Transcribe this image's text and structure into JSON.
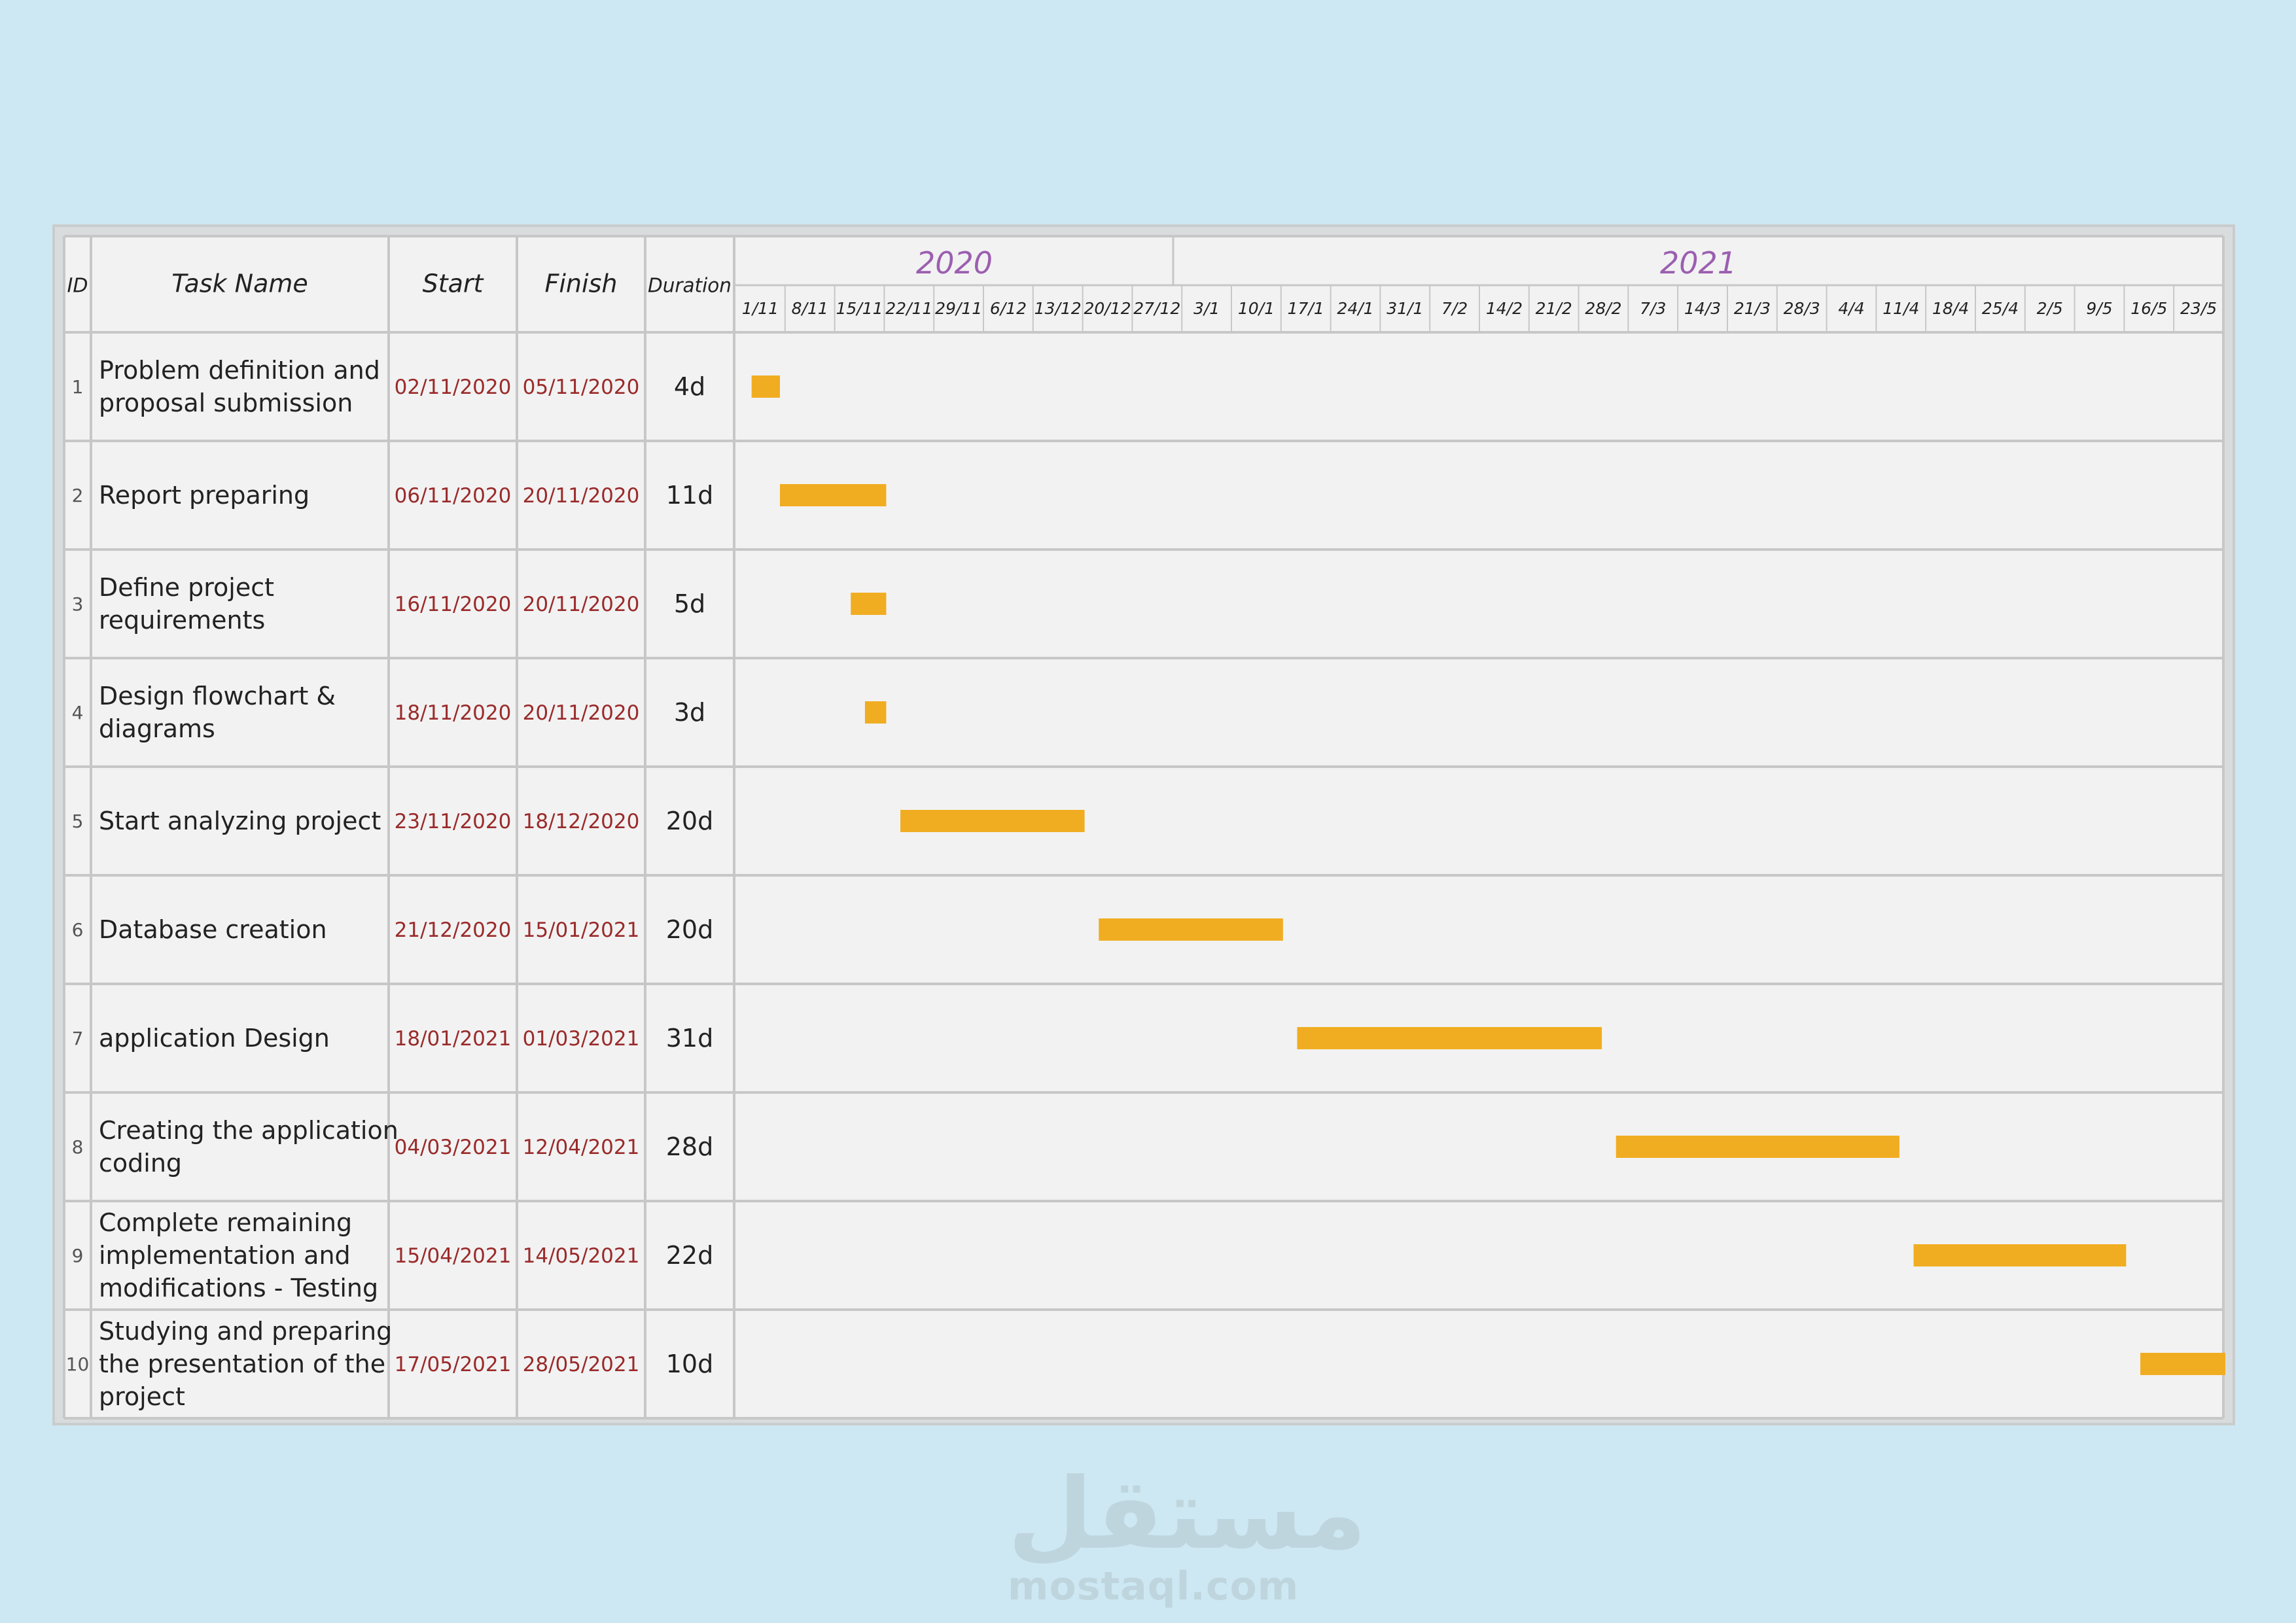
{
  "watermark": {
    "arabic": "مستقل",
    "latin": "mostaql.com"
  },
  "colors": {
    "bar": "#f1ad21",
    "cell": "#f2f2f2",
    "grid": "#c7c7c7",
    "year": "#9b5fb0",
    "date": "#9a2a2a",
    "text": "#222222"
  },
  "chart_data": {
    "type": "gantt",
    "headers": {
      "id": "ID",
      "task": "Task Name",
      "start": "Start",
      "finish": "Finish",
      "duration": "Duration"
    },
    "years": [
      {
        "label": "2020",
        "from": "2020-11-01",
        "to": "2020-12-31"
      },
      {
        "label": "2021",
        "from": "2021-01-01",
        "to": "2021-05-30"
      }
    ],
    "weeks": [
      "1/11",
      "8/11",
      "15/11",
      "22/11",
      "29/11",
      "6/12",
      "13/12",
      "20/12",
      "27/12",
      "3/1",
      "10/1",
      "17/1",
      "24/1",
      "31/1",
      "7/2",
      "14/2",
      "21/2",
      "28/2",
      "7/3",
      "14/3",
      "21/3",
      "28/3",
      "4/4",
      "11/4",
      "18/4",
      "25/4",
      "2/5",
      "9/5",
      "16/5",
      "23/5"
    ],
    "week_dates": [
      "2020-11-01",
      "2020-11-08",
      "2020-11-15",
      "2020-11-22",
      "2020-11-29",
      "2020-12-06",
      "2020-12-13",
      "2020-12-20",
      "2020-12-27",
      "2021-01-03",
      "2021-01-10",
      "2021-01-17",
      "2021-01-24",
      "2021-01-31",
      "2021-02-07",
      "2021-02-14",
      "2021-02-21",
      "2021-02-28",
      "2021-03-07",
      "2021-03-14",
      "2021-03-21",
      "2021-03-28",
      "2021-04-04",
      "2021-04-11",
      "2021-04-18",
      "2021-04-25",
      "2021-05-02",
      "2021-05-09",
      "2021-05-16",
      "2021-05-23"
    ],
    "tasks": [
      {
        "id": "1",
        "name": "Problem definition and\nproposal submission",
        "start": "02/11/2020",
        "finish": "05/11/2020",
        "duration": "4d"
      },
      {
        "id": "2",
        "name": "Report preparing",
        "start": "06/11/2020",
        "finish": "20/11/2020",
        "duration": "11d"
      },
      {
        "id": "3",
        "name": "Define project\nrequirements",
        "start": "16/11/2020",
        "finish": "20/11/2020",
        "duration": "5d"
      },
      {
        "id": "4",
        "name": "Design flowchart &\ndiagrams",
        "start": "18/11/2020",
        "finish": "20/11/2020",
        "duration": "3d"
      },
      {
        "id": "5",
        "name": "Start analyzing project",
        "start": "23/11/2020",
        "finish": "18/12/2020",
        "duration": "20d"
      },
      {
        "id": "6",
        "name": "Database creation",
        "start": "21/12/2020",
        "finish": "15/01/2021",
        "duration": "20d"
      },
      {
        "id": "7",
        "name": "application Design",
        "start": "18/01/2021",
        "finish": "01/03/2021",
        "duration": "31d"
      },
      {
        "id": "8",
        "name": "Creating the application\ncoding",
        "start": "04/03/2021",
        "finish": "12/04/2021",
        "duration": "28d"
      },
      {
        "id": "9",
        "name": "Complete remaining\nimplementation and\nmodifications - Testing",
        "start": "15/04/2021",
        "finish": "14/05/2021",
        "duration": "22d"
      },
      {
        "id": "10",
        "name": "Studying and preparing\nthe presentation of the\nproject",
        "start": "17/05/2021",
        "finish": "28/05/2021",
        "duration": "10d"
      }
    ]
  }
}
